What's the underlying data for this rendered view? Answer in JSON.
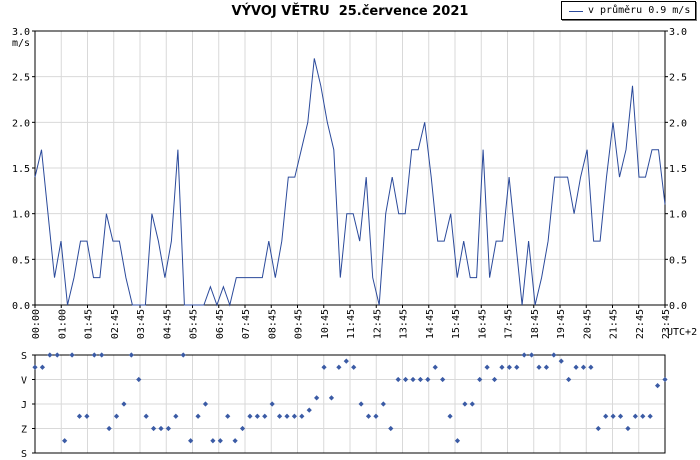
{
  "title": "VÝVOJ VĚTRU  25.července 2021",
  "legend": {
    "label": "v průměru 0.9 m/s"
  },
  "colors": {
    "line": "#2b4a9b",
    "marker": "#3b5ba5",
    "grid": "#d9d9d9",
    "axis": "#000000"
  },
  "chart_data": [
    {
      "type": "line",
      "title": "VÝVOJ VĚTRU  25.července 2021",
      "ylabel": "m/s",
      "ylim": [
        0,
        3
      ],
      "yticks": [
        "0.0",
        "0.5",
        "1.0",
        "1.5",
        "2.0",
        "2.5",
        "3.0"
      ],
      "xticks": [
        "00:00",
        "01:00",
        "01:45",
        "02:45",
        "03:45",
        "04:45",
        "05:45",
        "06:45",
        "07:45",
        "08:45",
        "09:45",
        "10:45",
        "11:45",
        "12:45",
        "13:45",
        "14:45",
        "15:45",
        "16:45",
        "17:45",
        "18:45",
        "19:45",
        "20:45",
        "21:45",
        "22:45",
        "23:45"
      ],
      "x_unit": "UTC+2",
      "grid": true,
      "legend_position": "top-right",
      "series": [
        {
          "name": "v průměru 0.9 m/s",
          "values": [
            1.4,
            1.7,
            1.0,
            0.3,
            0.7,
            0.0,
            0.3,
            0.7,
            0.7,
            0.3,
            0.3,
            1.0,
            0.7,
            0.7,
            0.3,
            0.0,
            0.0,
            0.0,
            1.0,
            0.7,
            0.3,
            0.7,
            1.7,
            0.0,
            0.0,
            0.0,
            0.0,
            0.2,
            0.0,
            0.2,
            0.0,
            0.3,
            0.3,
            0.3,
            0.3,
            0.3,
            0.7,
            0.3,
            0.7,
            1.4,
            1.4,
            1.7,
            2.0,
            2.7,
            2.4,
            2.0,
            1.7,
            0.3,
            1.0,
            1.0,
            0.7,
            1.4,
            0.3,
            0.0,
            1.0,
            1.4,
            1.0,
            1.0,
            1.7,
            1.7,
            2.0,
            1.4,
            0.7,
            0.7,
            1.0,
            0.3,
            0.7,
            0.3,
            0.3,
            1.7,
            0.3,
            0.7,
            0.7,
            1.4,
            0.7,
            0.0,
            0.7,
            0.0,
            0.3,
            0.7,
            1.4,
            1.4,
            1.4,
            1.0,
            1.4,
            1.7,
            0.7,
            0.7,
            1.4,
            2.0,
            1.4,
            1.7,
            2.4,
            1.4,
            1.4,
            1.7,
            1.7,
            1.1
          ]
        }
      ]
    },
    {
      "type": "scatter",
      "ylabel_ticks": [
        "S",
        "V",
        "J",
        "Z",
        "S"
      ],
      "note": "wind direction (0 = S top, 1 = V, 2 = J, 3 = Z, 4 = S bottom)",
      "directions": [
        0.5,
        0.5,
        0,
        0,
        3.5,
        0,
        2.5,
        2.5,
        0,
        0,
        3,
        2.5,
        2,
        0,
        1,
        2.5,
        3,
        3,
        3,
        2.5,
        0,
        3.5,
        2.5,
        2,
        3.5,
        3.5,
        2.5,
        3.5,
        3,
        2.5,
        2.5,
        2.5,
        2,
        2.5,
        2.5,
        2.5,
        2.5,
        2.25,
        1.75,
        0.5,
        1.75,
        0.5,
        0.25,
        0.5,
        2,
        2.5,
        2.5,
        2,
        3,
        1,
        1,
        1,
        1,
        1,
        0.5,
        1,
        2.5,
        3.5,
        2,
        2,
        1,
        0.5,
        1,
        0.5,
        0.5,
        0.5,
        0,
        0,
        0.5,
        0.5,
        0,
        0.25,
        1,
        0.5,
        0.5,
        0.5,
        3,
        2.5,
        2.5,
        2.5,
        3,
        2.5,
        2.5,
        2.5,
        1.25,
        1
      ]
    }
  ]
}
